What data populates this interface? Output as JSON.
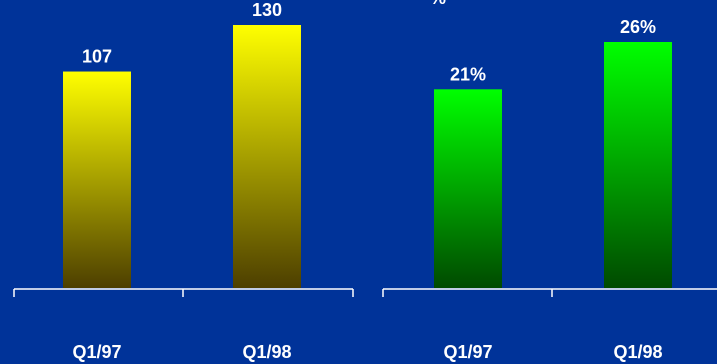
{
  "chart_data": [
    {
      "type": "bar",
      "categories": [
        "Q1/97",
        "Q1/98"
      ],
      "values": [
        107,
        130
      ],
      "value_labels": [
        "107",
        "130"
      ],
      "colors": {
        "top": "#ffff00",
        "bottom": "#4d3f00"
      },
      "grid": false
    },
    {
      "type": "bar",
      "categories": [
        "Q1/97",
        "Q1/98"
      ],
      "values": [
        21,
        26
      ],
      "value_labels": [
        "21%",
        "26%"
      ],
      "colors": {
        "top": "#00ff00",
        "bottom": "#004a00"
      },
      "grid": false
    }
  ],
  "partial_top_text": "%",
  "background": "#003399"
}
